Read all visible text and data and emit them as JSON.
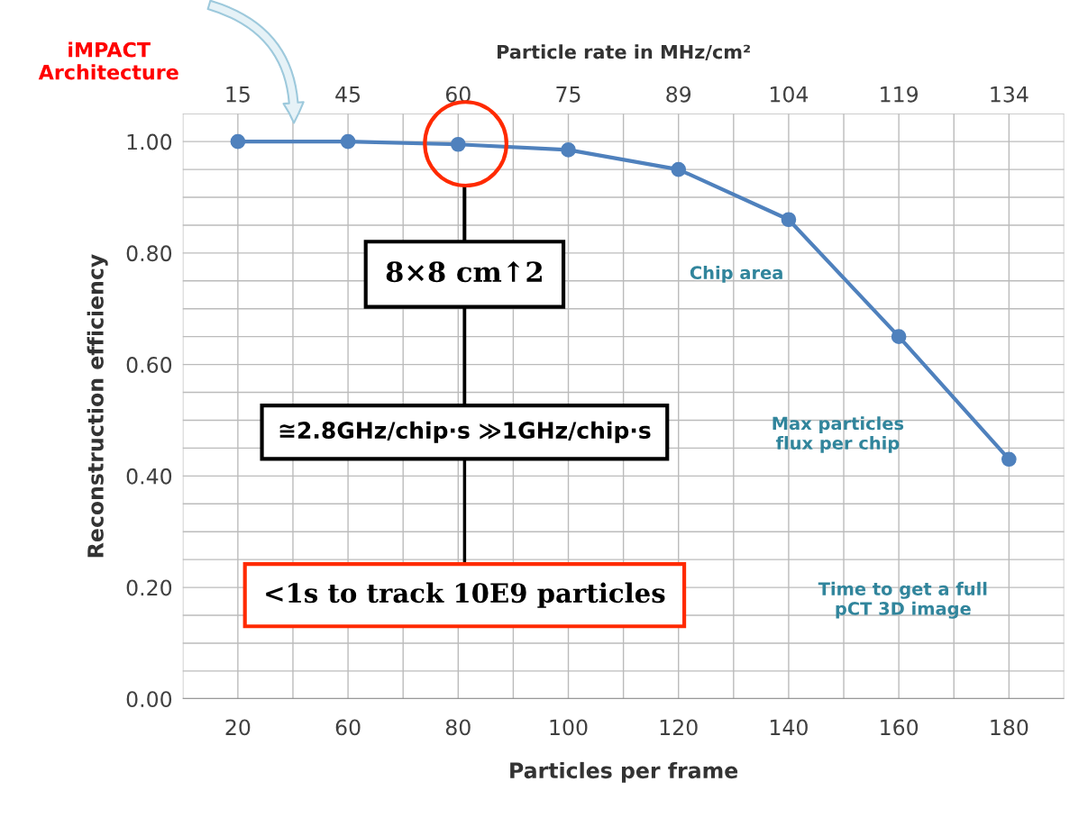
{
  "chart_data": {
    "type": "line",
    "xlabel": "Particles per frame",
    "ylabel": "Reconstruction efficiency",
    "x2label": "Particle rate in MHz/cm²",
    "categories": [
      "20",
      "60",
      "80",
      "100",
      "120",
      "140",
      "160",
      "180"
    ],
    "series": [
      {
        "color": "#4f81bd",
        "values": [
          1.0,
          1.0,
          0.995,
          0.985,
          0.95,
          0.86,
          0.65,
          0.43
        ]
      }
    ],
    "ylim": [
      0,
      1.05
    ],
    "yticks": [
      {
        "value": 0,
        "label": "0.00"
      },
      {
        "value": 0.2,
        "label": "0.20"
      },
      {
        "value": 0.4,
        "label": "0.40"
      },
      {
        "value": 0.6,
        "label": "0.60"
      },
      {
        "value": 0.8,
        "label": "0.80"
      },
      {
        "value": 1.0,
        "label": "1.00"
      }
    ],
    "grid": true,
    "marker": "circle",
    "line_style": "solid",
    "annotations": [
      "iMPACT\nArchitecture",
      "Chip area",
      "Max particles\nflux per chip",
      "Time to get a full\npCT 3D image",
      "8×8 cm↑2",
      "≅2.8GHz/chip·s ≫1GHz/chip·s",
      "<1s to track 10E9 particles",
      "15",
      "45",
      "60",
      "75",
      "89",
      "104",
      "119",
      "134"
    ]
  }
}
